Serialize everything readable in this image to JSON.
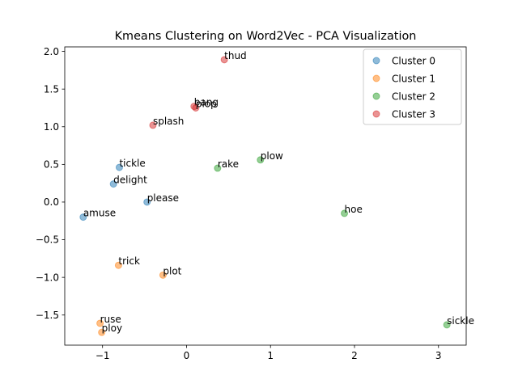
{
  "chart_data": {
    "type": "scatter",
    "title": "Kmeans Clustering on Word2Vec - PCA Visualization",
    "xlabel": "",
    "ylabel": "",
    "xlim": [
      -1.45,
      3.33
    ],
    "ylim": [
      -1.9,
      2.06
    ],
    "x_ticks": [
      -1,
      0,
      1,
      2,
      3
    ],
    "y_ticks": [
      -1.5,
      -1.0,
      -0.5,
      0.0,
      0.5,
      1.0,
      1.5,
      2.0
    ],
    "x_tick_labels": [
      "−1",
      "0",
      "1",
      "2",
      "3"
    ],
    "y_tick_labels": [
      "−1.5",
      "−1.0",
      "−0.5",
      "0.0",
      "0.5",
      "1.0",
      "1.5",
      "2.0"
    ],
    "legend_position": "top-right",
    "grid": false,
    "series": [
      {
        "name": "Cluster 0",
        "color": "#1f77b4",
        "points": [
          {
            "label": "tickle",
            "x": -0.8,
            "y": 0.46
          },
          {
            "label": "delight",
            "x": -0.87,
            "y": 0.24
          },
          {
            "label": "please",
            "x": -0.47,
            "y": 0.0
          },
          {
            "label": "amuse",
            "x": -1.23,
            "y": -0.2
          }
        ]
      },
      {
        "name": "Cluster 1",
        "color": "#ff7f0e",
        "points": [
          {
            "label": "trick",
            "x": -0.81,
            "y": -0.84
          },
          {
            "label": "plot",
            "x": -0.28,
            "y": -0.97
          },
          {
            "label": "ruse",
            "x": -1.03,
            "y": -1.61
          },
          {
            "label": "ploy",
            "x": -1.01,
            "y": -1.73
          }
        ]
      },
      {
        "name": "Cluster 2",
        "color": "#2ca02c",
        "points": [
          {
            "label": "plow",
            "x": 0.88,
            "y": 0.56
          },
          {
            "label": "rake",
            "x": 0.37,
            "y": 0.45
          },
          {
            "label": "hoe",
            "x": 1.88,
            "y": -0.15
          },
          {
            "label": "sickle",
            "x": 3.1,
            "y": -1.63
          }
        ]
      },
      {
        "name": "Cluster 3",
        "color": "#d62728",
        "points": [
          {
            "label": "thud",
            "x": 0.45,
            "y": 1.89
          },
          {
            "label": "bang",
            "x": 0.09,
            "y": 1.27
          },
          {
            "label": "plop",
            "x": 0.11,
            "y": 1.25
          },
          {
            "label": "splash",
            "x": -0.4,
            "y": 1.02
          }
        ]
      }
    ]
  }
}
